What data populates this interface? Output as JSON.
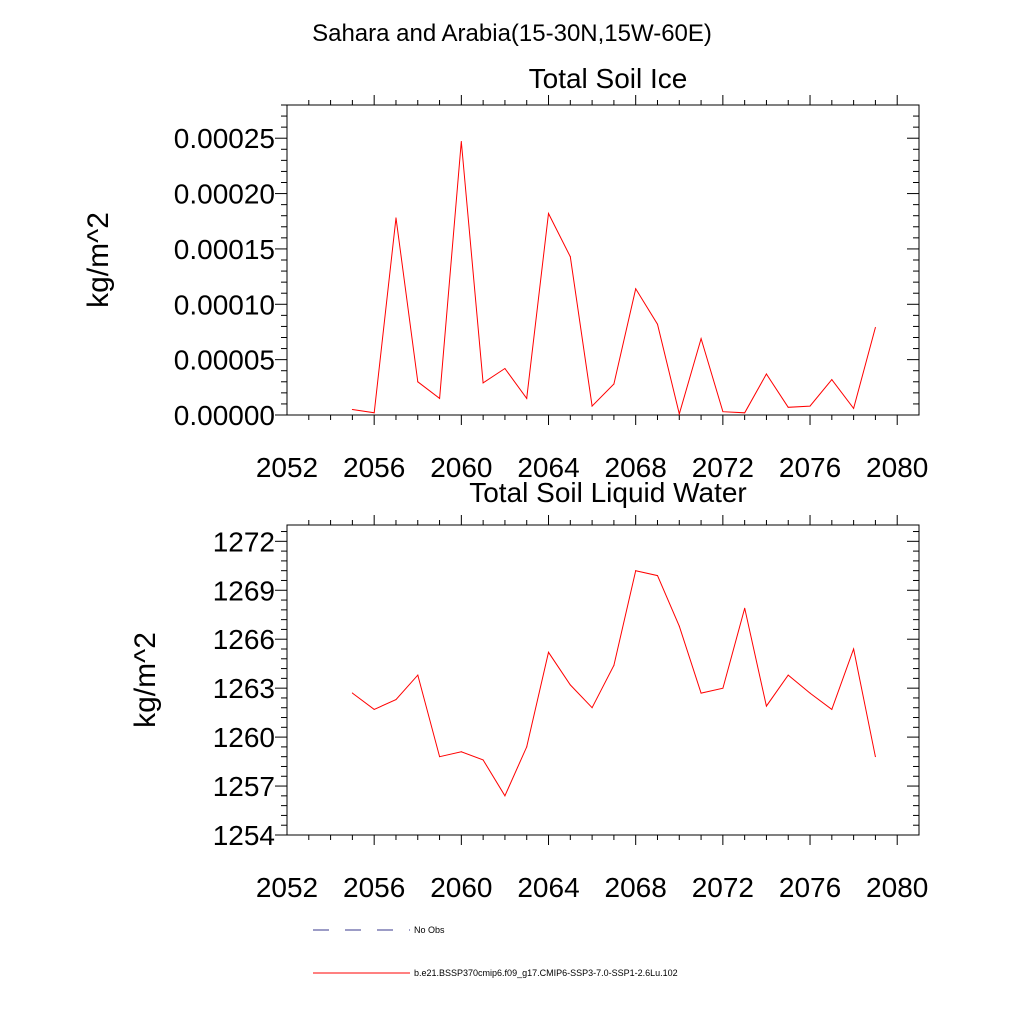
{
  "figure": {
    "suptitle": "Sahara and Arabia(15-30N,15W-60E)"
  },
  "chart_data": [
    {
      "type": "line",
      "title": "Total Soil Ice",
      "ylabel": "kg/m^2",
      "xlabel": "",
      "xlim": [
        2052,
        2081
      ],
      "ylim": [
        0.0,
        0.00028
      ],
      "xticks": [
        2052,
        2056,
        2060,
        2064,
        2068,
        2072,
        2076,
        2080
      ],
      "xtick_labels": [
        "2052",
        "2056",
        "2060",
        "2064",
        "2068",
        "2072",
        "2076",
        "2080"
      ],
      "yticks": [
        0.0,
        5e-05,
        0.0001,
        0.00015,
        0.0002,
        0.00025
      ],
      "ytick_labels": [
        "0.00000",
        "0.00005",
        "0.00010",
        "0.00015",
        "0.00020",
        "0.00025"
      ],
      "grid": false,
      "series": [
        {
          "color": "#ff0000",
          "x": [
            2055,
            2056,
            2057,
            2058,
            2059,
            2060,
            2061,
            2062,
            2063,
            2064,
            2065,
            2066,
            2067,
            2068,
            2069,
            2070,
            2071,
            2072,
            2073,
            2074,
            2075,
            2076,
            2077,
            2078,
            2079
          ],
          "values": [
            5e-06,
            2e-06,
            0.000178,
            3e-05,
            1.5e-05,
            0.000247,
            2.9e-05,
            4.2e-05,
            1.5e-05,
            0.000182,
            0.000143,
            8e-06,
            2.8e-05,
            0.000114,
            8.2e-05,
            1e-06,
            6.9e-05,
            3e-06,
            2e-06,
            3.7e-05,
            7e-06,
            8e-06,
            3.2e-05,
            6e-06,
            7.9e-05
          ]
        }
      ]
    },
    {
      "type": "line",
      "title": "Total Soil Liquid Water",
      "ylabel": "kg/m^2",
      "xlabel": "",
      "xlim": [
        2052,
        2081
      ],
      "ylim": [
        1254,
        1273
      ],
      "xticks": [
        2052,
        2056,
        2060,
        2064,
        2068,
        2072,
        2076,
        2080
      ],
      "xtick_labels": [
        "2052",
        "2056",
        "2060",
        "2064",
        "2068",
        "2072",
        "2076",
        "2080"
      ],
      "yticks": [
        1254,
        1257,
        1260,
        1263,
        1266,
        1269,
        1272
      ],
      "ytick_labels": [
        "1254",
        "1257",
        "1260",
        "1263",
        "1266",
        "1269",
        "1272"
      ],
      "grid": false,
      "series": [
        {
          "color": "#ff0000",
          "x": [
            2055,
            2056,
            2057,
            2058,
            2059,
            2060,
            2061,
            2062,
            2063,
            2064,
            2065,
            2066,
            2067,
            2068,
            2069,
            2070,
            2071,
            2072,
            2073,
            2074,
            2075,
            2076,
            2077,
            2078,
            2079
          ],
          "values": [
            1262.7,
            1261.7,
            1262.3,
            1263.8,
            1258.8,
            1259.1,
            1258.6,
            1256.4,
            1259.4,
            1265.2,
            1263.2,
            1261.8,
            1264.4,
            1270.2,
            1269.9,
            1266.8,
            1262.7,
            1263.0,
            1267.9,
            1261.9,
            1263.8,
            1262.7,
            1261.7,
            1265.4,
            1258.8
          ]
        }
      ]
    }
  ],
  "legend": {
    "placement": "bottom",
    "entries": [
      {
        "label": "No Obs",
        "color": "#3a3a8c",
        "style": "dashed"
      },
      {
        "label": "b.e21.BSSP370cmip6.f09_g17.CMIP6-SSP3-7.0-SSP1-2.6Lu.102",
        "color": "#ff0000",
        "style": "solid"
      }
    ]
  }
}
